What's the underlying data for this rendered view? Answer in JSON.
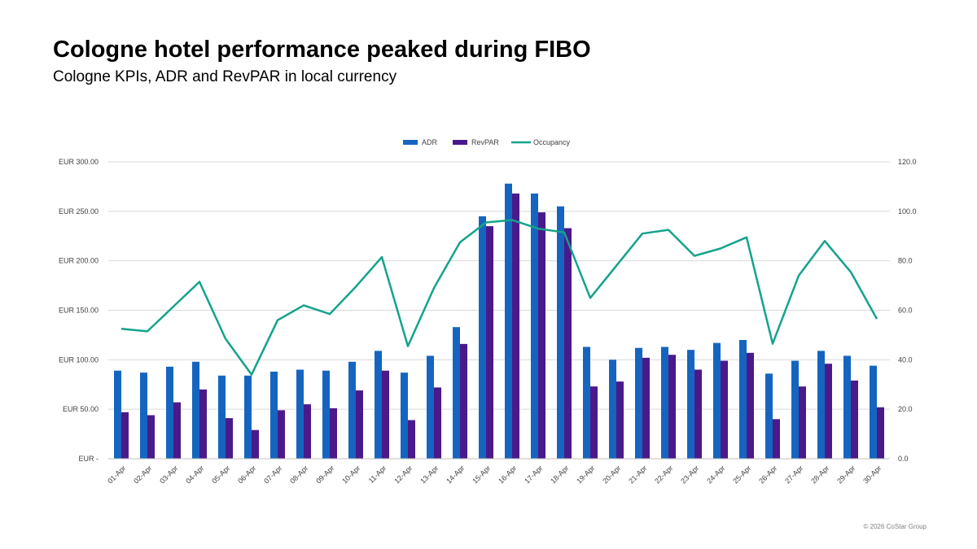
{
  "header": {
    "title": "Cologne hotel performance peaked during FIBO",
    "subtitle": "Cologne KPIs, ADR and RevPAR in local currency"
  },
  "footer": {
    "copyright": "© 2026 CoStar Group"
  },
  "colors": {
    "adr": "#1565c0",
    "revpar": "#4a1a8a",
    "occupancy": "#14a38b",
    "grid": "#d9d9d9",
    "axis_text": "#404040"
  },
  "chart_data": {
    "type": "bar",
    "categories": [
      "01-Apr",
      "02-Apr",
      "03-Apr",
      "04-Apr",
      "05-Apr",
      "06-Apr",
      "07-Apr",
      "08-Apr",
      "09-Apr",
      "10-Apr",
      "11-Apr",
      "12-Apr",
      "13-Apr",
      "14-Apr",
      "15-Apr",
      "16-Apr",
      "17-Apr",
      "18-Apr",
      "19-Apr",
      "20-Apr",
      "21-Apr",
      "22-Apr",
      "23-Apr",
      "24-Apr",
      "25-Apr",
      "26-Apr",
      "27-Apr",
      "28-Apr",
      "29-Apr",
      "30-Apr"
    ],
    "series": [
      {
        "name": "ADR",
        "type": "bar",
        "axis": "left",
        "values": [
          89,
          87,
          93,
          98,
          84,
          84,
          88,
          90,
          89,
          98,
          109,
          87,
          104,
          133,
          245,
          278,
          268,
          255,
          113,
          100,
          112,
          113,
          110,
          117,
          120,
          86,
          99,
          109,
          104,
          94
        ]
      },
      {
        "name": "RevPAR",
        "type": "bar",
        "axis": "left",
        "values": [
          47,
          44,
          57,
          70,
          41,
          29,
          49,
          55,
          51,
          69,
          89,
          39,
          72,
          116,
          235,
          268,
          249,
          233,
          73,
          78,
          102,
          105,
          90,
          99,
          107,
          40,
          73,
          96,
          79,
          52
        ]
      },
      {
        "name": "Occupancy",
        "type": "line",
        "axis": "right",
        "values": [
          52.5,
          51.5,
          61.5,
          71.5,
          48.5,
          34.0,
          56.0,
          62.0,
          58.5,
          69.5,
          81.5,
          45.5,
          69.0,
          87.5,
          95.5,
          96.5,
          93.0,
          91.5,
          65.0,
          78.0,
          91.0,
          92.5,
          82.0,
          85.0,
          89.5,
          46.5,
          74.0,
          88.0,
          75.5,
          56.5
        ]
      }
    ],
    "y_left": {
      "ylim": [
        0,
        300
      ],
      "ticks": [
        0,
        50,
        100,
        150,
        200,
        250,
        300
      ],
      "tick_labels": [
        "EUR -",
        "EUR 50.00",
        "EUR 100.00",
        "EUR 150.00",
        "EUR 200.00",
        "EUR 250.00",
        "EUR 300.00"
      ]
    },
    "y_right": {
      "ylim": [
        0,
        120
      ],
      "ticks": [
        0,
        20,
        40,
        60,
        80,
        100,
        120
      ],
      "tick_labels": [
        "0.0",
        "20.0",
        "40.0",
        "60.0",
        "80.0",
        "100.0",
        "120.0"
      ]
    },
    "legend": {
      "position": "top",
      "entries": [
        "ADR",
        "RevPAR",
        "Occupancy"
      ]
    },
    "grid": true
  }
}
